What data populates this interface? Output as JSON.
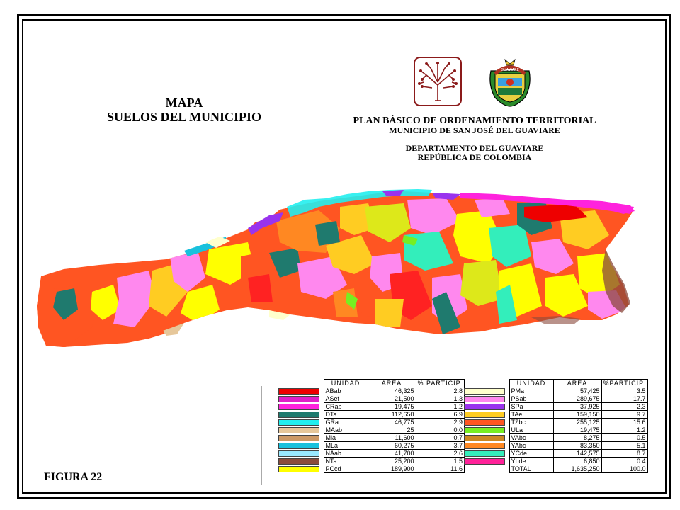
{
  "title": {
    "line1": "MAPA",
    "line2": "SUELOS DEL MUNICIPIO"
  },
  "plan": {
    "line1": "PLAN BÁSICO DE ORDENAMIENTO TERRITORIAL",
    "line2": "MUNICIPIO DE SAN JOSÉ DEL GUAVIARE",
    "line3": "DEPARTAMENTO DEL GUAVIARE",
    "line4": "REPÚBLICA DE COLOMBIA"
  },
  "crest_text": "GUAVIARE",
  "figure_label": "FIGURA  22",
  "legend": {
    "headers": {
      "unit": "UNIDAD",
      "area": "AREA",
      "pct_left": "% PARTICIP.",
      "pct_right": "%PARTICIP."
    },
    "left": [
      {
        "unit": "ABab",
        "area": "46,325",
        "pct": "2.8",
        "color": "#ee0000"
      },
      {
        "unit": "ASef",
        "area": "21,500",
        "pct": "1.3",
        "color": "#e01fc8"
      },
      {
        "unit": "CRab",
        "area": "19,475",
        "pct": "1.2",
        "color": "#ff22dd"
      },
      {
        "unit": "DTa",
        "area": "112,650",
        "pct": "6.9",
        "color": "#1f7a6e"
      },
      {
        "unit": "GRa",
        "area": "46,775",
        "pct": "2.9",
        "color": "#22eeee"
      },
      {
        "unit": "MAab",
        "area": "25",
        "pct": "0.0",
        "color": "#e6c79a"
      },
      {
        "unit": "Mla",
        "area": "11,600",
        "pct": "0.7",
        "color": "#cc9966"
      },
      {
        "unit": "MLa",
        "area": "60,275",
        "pct": "3.7",
        "color": "#19c1dd"
      },
      {
        "unit": "NAab",
        "area": "41,700",
        "pct": "2.6",
        "color": "#99e8ff"
      },
      {
        "unit": "NTa",
        "area": "25,200",
        "pct": "1.5",
        "color": "#8b4a3c"
      },
      {
        "unit": "PCcd",
        "area": "189,900",
        "pct": "11.6",
        "color": "#ffff00"
      }
    ],
    "right": [
      {
        "unit": "PMa",
        "area": "57,425",
        "pct": "3.5",
        "color": "#ffffcc"
      },
      {
        "unit": "PSab",
        "area": "289,675",
        "pct": "17.7",
        "color": "#ff88ee"
      },
      {
        "unit": "SPa",
        "area": "37,925",
        "pct": "2.3",
        "color": "#9933ee"
      },
      {
        "unit": "TAe",
        "area": "159,150",
        "pct": "9.7",
        "color": "#ffcc22"
      },
      {
        "unit": "TZbc",
        "area": "255,125",
        "pct": "15.6",
        "color": "#ff5522"
      },
      {
        "unit": "ULa",
        "area": "19,475",
        "pct": "1.2",
        "color": "#77ee22"
      },
      {
        "unit": "VAbc",
        "area": "8,275",
        "pct": "0.5",
        "color": "#cc8822"
      },
      {
        "unit": "YAbc",
        "area": "83,350",
        "pct": "5.1",
        "color": "#ff8822"
      },
      {
        "unit": "YCde",
        "area": "142,575",
        "pct": "8.7",
        "color": "#33eebb"
      },
      {
        "unit": "YLde",
        "area": "6,850",
        "pct": "0.4",
        "color": "#ff2299"
      },
      {
        "unit": "TOTAL",
        "area": "1,635,250",
        "pct": "100.0",
        "color": ""
      }
    ]
  }
}
